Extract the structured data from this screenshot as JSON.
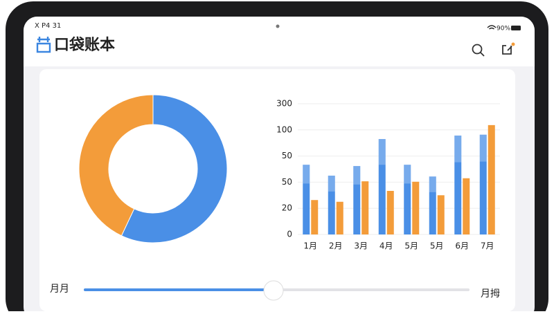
{
  "status_bar": {
    "left": "X P4 31",
    "battery": "90%"
  },
  "header": {
    "title": "口袋账本"
  },
  "donut": {
    "type": "pie",
    "values": [
      57,
      43
    ],
    "colors": [
      "#4a8fe6",
      "#f39c3a"
    ]
  },
  "bar_chart": {
    "type": "bar",
    "categories": [
      "1月",
      "2月",
      "3月",
      "4月",
      "5月",
      "5月",
      "6月",
      "7月"
    ],
    "ylim": [
      0,
      300
    ],
    "y_axis_labels": [
      300,
      100,
      50,
      50,
      20,
      0
    ],
    "grid": true,
    "series": [
      {
        "color": "#4a8fe6",
        "values": [
          160,
          135,
          157,
          219,
          160,
          133,
          227,
          229
        ]
      },
      {
        "color": "#f39c3a",
        "values": [
          79,
          75,
          122,
          100,
          121,
          90,
          129,
          251
        ]
      }
    ]
  },
  "slider": {
    "left_label": "月月",
    "right_label": "月拇"
  }
}
